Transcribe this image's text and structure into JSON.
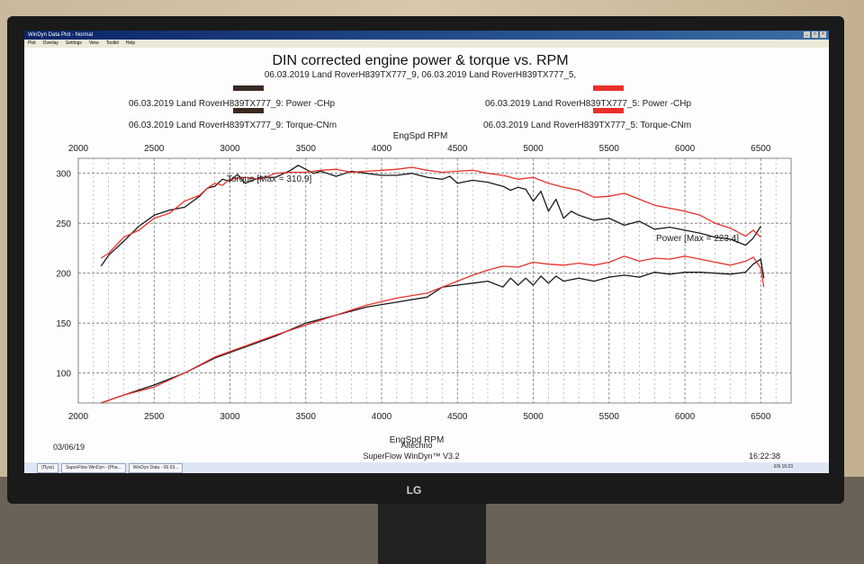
{
  "window": {
    "title": "WinDyn Data Plot - Normal",
    "menu": [
      "Plot",
      "Overlay",
      "Settings",
      "View",
      "Toolkit",
      "Help"
    ],
    "controls": [
      "_",
      "□",
      "×"
    ]
  },
  "taskbar": {
    "items": [
      "(Пуск)",
      "SuperFlow WinDyn - [Pha...",
      "WinDyn Data - 06.03..."
    ],
    "tray_time": "16:23",
    "lang": "EN"
  },
  "footer": {
    "date": "03/06/19",
    "company": "Altechno",
    "software": "SuperFlow WinDyn™ V3.2",
    "time": "16:22:38"
  },
  "monitor": {
    "brand": "LG"
  },
  "chart_data": {
    "type": "line",
    "title": "DIN corrected engine power & torque vs. RPM",
    "subtitle": "06.03.2019 Land RoverH839TX777_9, 06.03.2019 Land RoverH839TX777_5,",
    "xlabel": "EngSpd RPM",
    "xlim": [
      2000,
      6700
    ],
    "ylim": [
      70,
      315
    ],
    "xticks": [
      2000,
      2500,
      3000,
      3500,
      4000,
      4500,
      5000,
      5500,
      6000,
      6500
    ],
    "yticks": [
      100,
      150,
      200,
      250,
      300
    ],
    "grid": true,
    "legend": [
      {
        "label": "06.03.2019 Land RoverH839TX777_9: Power -CHp",
        "color": "#3a2a22"
      },
      {
        "label": "06.03.2019 Land RoverH839TX777_9: Torque-CNm",
        "color": "#3a2a22"
      },
      {
        "label": "06.03.2019 Land RoverH839TX777_5: Power -CHp",
        "color": "#e8312a"
      },
      {
        "label": "06.03.2019 Land RoverH839TX777_5: Torque-CNm",
        "color": "#e8312a"
      }
    ],
    "annotations": {
      "torque_max": "Torque [Max = 310.9]",
      "power_max": "Power [Max = 223.4]"
    },
    "series": [
      {
        "name": "06.03.2019 Land RoverH839TX777_9: Torque-CNm",
        "color": "#1a1a1a",
        "x": [
          2150,
          2200,
          2300,
          2400,
          2500,
          2600,
          2700,
          2800,
          2850,
          2900,
          2950,
          3000,
          3050,
          3100,
          3200,
          3300,
          3400,
          3450,
          3500,
          3550,
          3600,
          3700,
          3800,
          3900,
          4000,
          4100,
          4200,
          4300,
          4400,
          4450,
          4500,
          4600,
          4700,
          4800,
          4850,
          4900,
          4950,
          5000,
          5050,
          5100,
          5150,
          5200,
          5250,
          5300,
          5400,
          5500,
          5600,
          5700,
          5800,
          5900,
          6000,
          6100,
          6200,
          6300,
          6400,
          6450,
          6500
        ],
        "y": [
          207,
          218,
          232,
          247,
          258,
          263,
          266,
          277,
          285,
          287,
          294,
          292,
          299,
          290,
          296,
          296,
          303,
          308,
          304,
          300,
          302,
          297,
          302,
          300,
          298,
          298,
          300,
          296,
          294,
          297,
          290,
          293,
          291,
          287,
          283,
          286,
          284,
          272,
          282,
          262,
          274,
          255,
          262,
          258,
          253,
          255,
          248,
          252,
          244,
          246,
          243,
          240,
          236,
          234,
          228,
          235,
          247
        ]
      },
      {
        "name": "06.03.2019 Land RoverH839TX777_5: Torque-CNm",
        "color": "#e8312a",
        "x": [
          2150,
          2200,
          2300,
          2400,
          2500,
          2600,
          2700,
          2800,
          2850,
          2900,
          2950,
          3000,
          3100,
          3200,
          3300,
          3400,
          3500,
          3600,
          3700,
          3800,
          3900,
          4000,
          4100,
          4200,
          4300,
          4400,
          4500,
          4600,
          4700,
          4800,
          4900,
          5000,
          5100,
          5200,
          5300,
          5400,
          5500,
          5600,
          5700,
          5800,
          5900,
          6000,
          6100,
          6200,
          6300,
          6400,
          6450,
          6500
        ],
        "y": [
          215,
          220,
          236,
          243,
          255,
          260,
          272,
          278,
          285,
          290,
          288,
          294,
          296,
          294,
          300,
          301,
          301,
          303,
          304,
          301,
          302,
          303,
          304,
          306,
          303,
          301,
          302,
          303,
          300,
          298,
          294,
          296,
          290,
          286,
          283,
          276,
          277,
          280,
          274,
          268,
          265,
          262,
          258,
          250,
          245,
          237,
          243,
          236
        ]
      },
      {
        "name": "06.03.2019 Land RoverH839TX777_9: Power -CHp",
        "color": "#1a1a1a",
        "x": [
          2150,
          2300,
          2500,
          2700,
          2900,
          3100,
          3300,
          3500,
          3700,
          3900,
          4100,
          4300,
          4400,
          4500,
          4600,
          4700,
          4800,
          4850,
          4900,
          4950,
          5000,
          5050,
          5100,
          5150,
          5200,
          5300,
          5400,
          5500,
          5600,
          5700,
          5800,
          5900,
          6000,
          6100,
          6200,
          6300,
          6400,
          6450,
          6500,
          6520
        ],
        "y": [
          70,
          78,
          88,
          100,
          115,
          126,
          137,
          150,
          158,
          166,
          171,
          176,
          186,
          188,
          190,
          192,
          186,
          195,
          188,
          195,
          188,
          197,
          190,
          197,
          192,
          195,
          192,
          196,
          198,
          196,
          201,
          199,
          201,
          201,
          200,
          199,
          201,
          209,
          214,
          195
        ]
      },
      {
        "name": "06.03.2019 Land RoverH839TX777_5: Power -CHp",
        "color": "#e8312a",
        "x": [
          2150,
          2300,
          2500,
          2700,
          2900,
          3100,
          3300,
          3500,
          3700,
          3900,
          4100,
          4300,
          4400,
          4500,
          4600,
          4700,
          4800,
          4900,
          5000,
          5100,
          5200,
          5300,
          5400,
          5500,
          5600,
          5700,
          5800,
          5900,
          6000,
          6100,
          6200,
          6300,
          6400,
          6450,
          6500,
          6520
        ],
        "y": [
          70,
          78,
          86,
          100,
          116,
          127,
          138,
          148,
          158,
          168,
          175,
          180,
          186,
          192,
          198,
          203,
          207,
          206,
          211,
          209,
          208,
          210,
          208,
          211,
          217,
          212,
          215,
          214,
          217,
          214,
          211,
          208,
          212,
          216,
          205,
          186
        ]
      }
    ]
  }
}
